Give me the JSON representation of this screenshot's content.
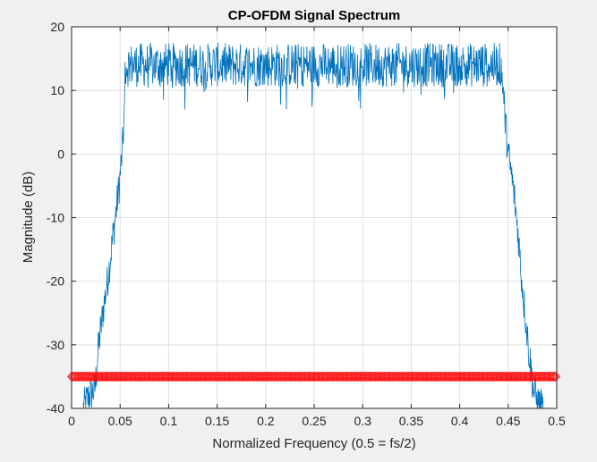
{
  "window": {
    "background": "#f0f0f0"
  },
  "chart_data": {
    "type": "line",
    "title": "CP-OFDM Signal Spectrum",
    "xlabel": "Normalized Frequency (0.5 = fs/2)",
    "ylabel": "Magnitude (dB)",
    "xlim": [
      0,
      0.5
    ],
    "ylim": [
      -40,
      20
    ],
    "xticks": [
      0,
      0.05,
      0.1,
      0.15,
      0.2,
      0.25,
      0.3,
      0.35,
      0.4,
      0.45,
      0.5
    ],
    "xtick_labels": [
      "0",
      "0.05",
      "0.1",
      "0.15",
      "0.2",
      "0.25",
      "0.3",
      "0.35",
      "0.4",
      "0.45",
      "0.5"
    ],
    "yticks": [
      -40,
      -30,
      -20,
      -10,
      0,
      10,
      20
    ],
    "ytick_labels": [
      "-40",
      "-30",
      "-20",
      "-10",
      "0",
      "10",
      "20"
    ],
    "grid": true,
    "series": [
      {
        "kind": "line",
        "color": "#0072bd",
        "shape_points": [
          {
            "x": 0.012,
            "y": -40.0
          },
          {
            "x": 0.018,
            "y": -38.0
          },
          {
            "x": 0.024,
            "y": -37.0
          },
          {
            "x": 0.028,
            "y": -30.0
          },
          {
            "x": 0.033,
            "y": -24.0
          },
          {
            "x": 0.037,
            "y": -20.0
          },
          {
            "x": 0.041,
            "y": -15.0
          },
          {
            "x": 0.045,
            "y": -10.0
          },
          {
            "x": 0.049,
            "y": -5.0
          },
          {
            "x": 0.052,
            "y": 0.0
          },
          {
            "x": 0.054,
            "y": 5.0
          },
          {
            "x": 0.056,
            "y": 12.0
          },
          {
            "x": 0.06,
            "y": 14.0
          },
          {
            "x": 0.44,
            "y": 14.0
          },
          {
            "x": 0.444,
            "y": 12.0
          },
          {
            "x": 0.447,
            "y": 5.0
          },
          {
            "x": 0.45,
            "y": 0.0
          },
          {
            "x": 0.455,
            "y": -5.0
          },
          {
            "x": 0.46,
            "y": -12.0
          },
          {
            "x": 0.464,
            "y": -20.0
          },
          {
            "x": 0.468,
            "y": -26.0
          },
          {
            "x": 0.472,
            "y": -32.0
          },
          {
            "x": 0.476,
            "y": -37.0
          },
          {
            "x": 0.48,
            "y": -39.0
          },
          {
            "x": 0.486,
            "y": -40.0
          }
        ],
        "passband_level_db": 14,
        "passband_spread_db": [
          7,
          20
        ],
        "passband_range": [
          0.055,
          0.443
        ]
      },
      {
        "kind": "markers",
        "marker": "diamond",
        "color": "#ff0000",
        "y": -35,
        "x_range": [
          0,
          0.5
        ]
      }
    ]
  }
}
